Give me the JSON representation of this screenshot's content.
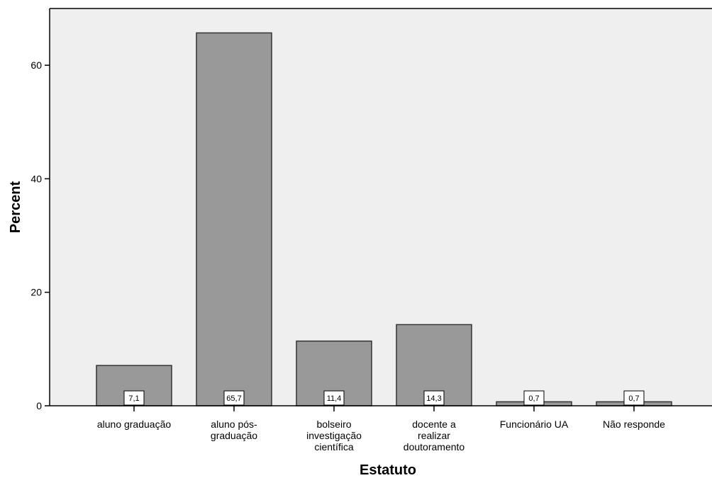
{
  "chart_data": {
    "type": "bar",
    "title": "",
    "xlabel": "Estatuto",
    "ylabel": "Percent",
    "categories": [
      [
        "aluno graduação"
      ],
      [
        "aluno pós-",
        "graduação"
      ],
      [
        "bolseiro",
        "investigação",
        "científica"
      ],
      [
        "docente a",
        "realizar",
        "doutoramento"
      ],
      [
        "Funcionário UA"
      ],
      [
        "Não responde"
      ]
    ],
    "values": [
      7.1,
      65.7,
      11.4,
      14.3,
      0.7,
      0.7
    ],
    "value_labels": [
      "7,1",
      "65,7",
      "11,4",
      "14,3",
      "0,7",
      "0,7"
    ],
    "ylim": [
      0,
      70
    ],
    "yticks": [
      0,
      20,
      40,
      60
    ],
    "grid": false,
    "legend": "none",
    "colors": {
      "plot_background": "#efefef",
      "bar_fill": "#999999",
      "bar_stroke": "#333333",
      "axis": "#000000",
      "label_box": "#ffffff"
    }
  }
}
